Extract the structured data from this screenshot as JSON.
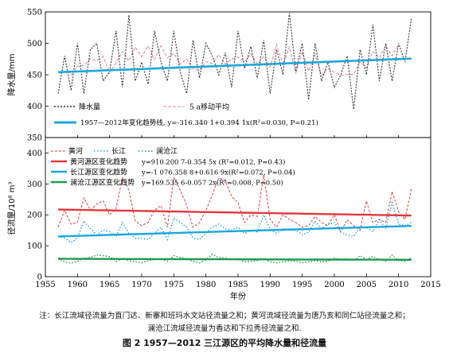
{
  "note": {
    "line1": "注：长江流域径流量为直门达、新寨和班玛水文站径流量之和；黄河流域径流量为唐乃亥和同仁站径流量之和；",
    "line2": "澜沧江流域径流量为香达和下拉秀径流量之和."
  },
  "caption": "图 2    1957—2012 三江源区的平均降水量和径流量",
  "chart_data": [
    {
      "type": "line",
      "ylabel": "降水量/mm",
      "xlim": [
        1955,
        2015
      ],
      "ylim": [
        350,
        550
      ],
      "yticks": [
        350,
        400,
        450,
        500,
        550
      ],
      "grid": false,
      "legend_position": "bottom-left",
      "colors": {
        "precip": "#333333",
        "moving": "#e08aa0",
        "trend": "#1ba6dd"
      },
      "legend": [
        "降水量",
        "5 a移动平均",
        "1957—2012年变化趋势线, y=-316.340 1+0.394 1x(R²=0.030, P=0.21)"
      ],
      "x": [
        1957,
        1958,
        1959,
        1960,
        1961,
        1962,
        1963,
        1964,
        1965,
        1966,
        1967,
        1968,
        1969,
        1970,
        1971,
        1972,
        1973,
        1974,
        1975,
        1976,
        1977,
        1978,
        1979,
        1980,
        1981,
        1982,
        1983,
        1984,
        1985,
        1986,
        1987,
        1988,
        1989,
        1990,
        1991,
        1992,
        1993,
        1994,
        1995,
        1996,
        1997,
        1998,
        1999,
        2000,
        2001,
        2002,
        2003,
        2004,
        2005,
        2006,
        2007,
        2008,
        2009,
        2010,
        2011,
        2012
      ],
      "series": [
        {
          "name": "降水量",
          "values": [
            420,
            480,
            425,
            500,
            420,
            490,
            500,
            440,
            455,
            520,
            430,
            545,
            440,
            470,
            435,
            520,
            470,
            440,
            520,
            455,
            420,
            505,
            445,
            500,
            480,
            450,
            485,
            430,
            520,
            460,
            495,
            445,
            505,
            420,
            490,
            450,
            548,
            455,
            500,
            410,
            500,
            440,
            470,
            430,
            450,
            480,
            395,
            490,
            450,
            530,
            440,
            500,
            440,
            500,
            470,
            540
          ]
        },
        {
          "name": "5 a移动平均",
          "values": [
            null,
            null,
            449,
            463,
            465,
            475,
            473,
            479,
            453,
            469,
            487,
            472,
            494,
            479,
            496,
            474,
            496,
            477,
            484,
            467,
            475,
            460,
            457,
            471,
            468,
            482,
            467,
            475,
            478,
            471,
            483,
            467,
            479,
            462,
            498,
            466,
            494,
            453,
            486,
            456,
            482,
            449,
            460,
            454,
            449,
            450,
            451,
            470,
            461,
            487,
            477,
            496,
            480,
            498,
            null,
            null
          ]
        },
        {
          "name": "1957—2012年变化趋势线",
          "values": [
            454.02,
            454.41,
            454.81,
            455.2,
            455.59,
            455.99,
            456.38,
            456.78,
            457.17,
            457.56,
            457.96,
            458.35,
            458.75,
            459.14,
            459.54,
            459.93,
            460.32,
            460.72,
            461.11,
            461.51,
            461.9,
            462.29,
            462.69,
            463.08,
            463.48,
            463.87,
            464.27,
            464.66,
            465.05,
            465.45,
            465.84,
            466.24,
            466.63,
            467.02,
            467.42,
            467.81,
            468.21,
            468.6,
            469.0,
            469.39,
            469.78,
            470.18,
            470.57,
            470.97,
            471.36,
            471.75,
            472.15,
            472.54,
            472.94,
            473.33,
            473.73,
            474.12,
            474.51,
            474.91,
            475.3,
            475.7
          ]
        }
      ]
    },
    {
      "type": "line",
      "xlabel": "年份",
      "ylabel": "径流量/10⁸ m³",
      "xlim": [
        1955,
        2015
      ],
      "ylim": [
        0,
        450
      ],
      "xticks": [
        1955,
        1960,
        1965,
        1970,
        1975,
        1980,
        1985,
        1990,
        1995,
        2000,
        2005,
        2010,
        2015
      ],
      "yticks": [
        0,
        100,
        200,
        300,
        400
      ],
      "grid": false,
      "legend_position": "top-left",
      "colors": {
        "huanghe": "#e0393e",
        "changjiang": "#1ba6dd",
        "lancang": "#1f9a4d"
      },
      "legend": [
        "黄河",
        "长江",
        "澜沧江",
        "黄河源区变化趋势",
        "长江源区变化趋势",
        "澜沧江源区变化趋势"
      ],
      "trend_equations": [
        "y=910.200 7-0.354 5x (R²=0.012, P=0.43)",
        "y=-1 076.358 8+0.616 9x(R²=0.072, P=0.04)",
        "y=169.535 6-0.057 2x(R²=0.008, P=0.50)"
      ],
      "x": [
        1957,
        1958,
        1959,
        1960,
        1961,
        1962,
        1963,
        1964,
        1965,
        1966,
        1967,
        1968,
        1969,
        1970,
        1971,
        1972,
        1973,
        1974,
        1975,
        1976,
        1977,
        1978,
        1979,
        1980,
        1981,
        1982,
        1983,
        1984,
        1985,
        1986,
        1987,
        1988,
        1989,
        1990,
        1991,
        1992,
        1993,
        1994,
        1995,
        1996,
        1997,
        1998,
        1999,
        2000,
        2001,
        2002,
        2003,
        2004,
        2005,
        2006,
        2007,
        2008,
        2009,
        2010,
        2011,
        2012
      ],
      "series": [
        {
          "name": "黄河",
          "values": [
            160,
            215,
            170,
            175,
            255,
            215,
            235,
            245,
            200,
            220,
            320,
            280,
            180,
            165,
            175,
            215,
            230,
            160,
            320,
            280,
            230,
            160,
            175,
            215,
            265,
            320,
            310,
            260,
            240,
            175,
            200,
            195,
            330,
            185,
            160,
            200,
            185,
            175,
            160,
            165,
            195,
            175,
            165,
            200,
            145,
            185,
            165,
            150,
            245,
            175,
            185,
            175,
            275,
            210,
            185,
            285
          ]
        },
        {
          "name": "长江",
          "values": [
            130,
            125,
            110,
            125,
            180,
            155,
            135,
            150,
            145,
            130,
            175,
            140,
            125,
            125,
            120,
            140,
            160,
            120,
            190,
            175,
            160,
            125,
            120,
            140,
            160,
            170,
            155,
            150,
            160,
            140,
            150,
            145,
            200,
            155,
            140,
            155,
            150,
            150,
            135,
            145,
            180,
            155,
            170,
            175,
            145,
            135,
            130,
            160,
            160,
            145,
            185,
            155,
            240,
            170,
            165,
            175
          ]
        },
        {
          "name": "澜沧江",
          "values": [
            60,
            48,
            44,
            50,
            60,
            62,
            70,
            68,
            65,
            50,
            58,
            52,
            48,
            45,
            52,
            55,
            58,
            50,
            68,
            62,
            58,
            50,
            45,
            55,
            72,
            62,
            60,
            55,
            58,
            48,
            50,
            52,
            58,
            48,
            45,
            48,
            52,
            50,
            45,
            48,
            52,
            48,
            50,
            60,
            55,
            58,
            52,
            68,
            56,
            65,
            55,
            50,
            70,
            52,
            50,
            62
          ]
        },
        {
          "name": "黄河源区变化趋势",
          "values": [
            217.23,
            216.87,
            216.52,
            216.16,
            215.81,
            215.45,
            215.1,
            214.74,
            214.39,
            214.03,
            213.68,
            213.33,
            212.97,
            212.62,
            212.26,
            211.91,
            211.55,
            211.2,
            210.84,
            210.49,
            210.13,
            209.78,
            209.42,
            209.07,
            208.71,
            208.36,
            208.0,
            207.65,
            207.29,
            206.94,
            206.59,
            206.23,
            205.88,
            205.52,
            205.17,
            204.81,
            204.46,
            204.1,
            203.75,
            203.39,
            203.04,
            202.68,
            202.33,
            201.97,
            201.62,
            201.26,
            200.91,
            200.55,
            200.2,
            199.84,
            199.49,
            199.13,
            198.78,
            198.43,
            198.07,
            197.72
          ]
        },
        {
          "name": "长江源区变化趋势",
          "values": [
            130.17,
            130.79,
            131.41,
            132.03,
            132.64,
            133.26,
            133.88,
            134.49,
            135.11,
            135.73,
            136.34,
            136.96,
            137.58,
            138.2,
            138.81,
            139.43,
            140.05,
            140.66,
            141.28,
            141.9,
            142.51,
            143.13,
            143.75,
            144.37,
            144.98,
            145.6,
            146.22,
            146.83,
            147.45,
            148.07,
            148.69,
            149.3,
            149.92,
            150.54,
            151.15,
            151.77,
            152.39,
            153.0,
            153.62,
            154.24,
            154.86,
            155.47,
            156.09,
            156.71,
            157.32,
            157.94,
            158.56,
            159.17,
            159.79,
            160.41,
            161.03,
            161.64,
            162.26,
            162.88,
            163.49,
            164.11
          ]
        },
        {
          "name": "澜沧江源区变化趋势",
          "values": [
            57.77,
            57.71,
            57.66,
            57.6,
            57.54,
            57.49,
            57.43,
            57.37,
            57.31,
            57.26,
            57.2,
            57.14,
            57.09,
            57.03,
            56.97,
            56.91,
            56.86,
            56.8,
            56.74,
            56.69,
            56.63,
            56.57,
            56.51,
            56.46,
            56.4,
            56.34,
            56.29,
            56.23,
            56.17,
            56.11,
            56.06,
            56.0,
            55.94,
            55.89,
            55.83,
            55.77,
            55.71,
            55.66,
            55.6,
            55.54,
            55.49,
            55.43,
            55.37,
            55.31,
            55.26,
            55.2,
            55.14,
            55.09,
            55.03,
            54.97,
            54.91,
            54.86,
            54.8,
            54.74,
            54.69,
            54.63
          ]
        }
      ]
    }
  ]
}
